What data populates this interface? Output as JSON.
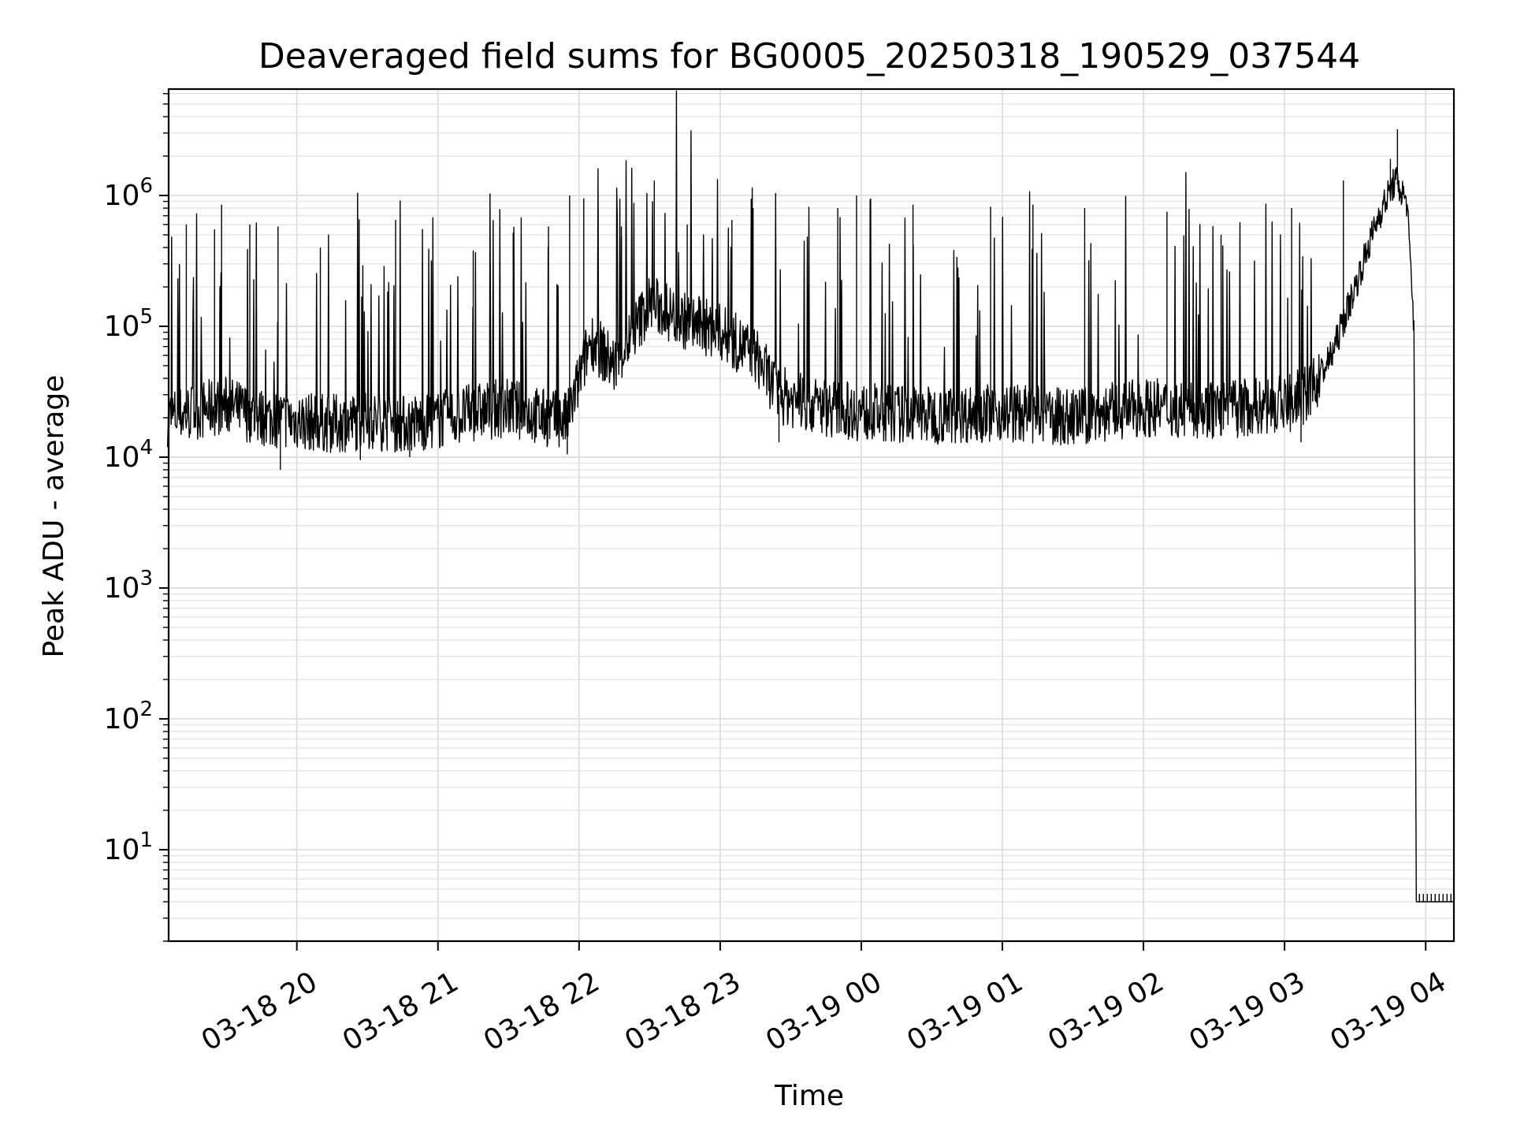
{
  "chart_data": {
    "type": "line",
    "title": "Deaveraged field sums for BG0005_20250318_190529_037544",
    "xlabel": "Time",
    "ylabel": "Peak ADU - average",
    "y_scale": "log",
    "ylim": [
      2,
      6500000
    ],
    "xlim": [
      "2025-03-18 19:05:29",
      "2025-03-19 04:12:00"
    ],
    "grid": true,
    "legend": "none",
    "line_color": "#000000",
    "x_ticks": [
      {
        "value": "2025-03-18 20:00",
        "label": "03-18 20"
      },
      {
        "value": "2025-03-18 21:00",
        "label": "03-18 21"
      },
      {
        "value": "2025-03-18 22:00",
        "label": "03-18 22"
      },
      {
        "value": "2025-03-18 23:00",
        "label": "03-18 23"
      },
      {
        "value": "2025-03-19 00:00",
        "label": "03-19 00"
      },
      {
        "value": "2025-03-19 01:00",
        "label": "03-19 01"
      },
      {
        "value": "2025-03-19 02:00",
        "label": "03-19 02"
      },
      {
        "value": "2025-03-19 03:00",
        "label": "03-19 03"
      },
      {
        "value": "2025-03-19 04:00",
        "label": "03-19 04"
      }
    ],
    "y_ticks": [
      {
        "value": 10,
        "base": "10",
        "exp": "1"
      },
      {
        "value": 100,
        "base": "10",
        "exp": "2"
      },
      {
        "value": 1000,
        "base": "10",
        "exp": "3"
      },
      {
        "value": 10000,
        "base": "10",
        "exp": "4"
      },
      {
        "value": 100000,
        "base": "10",
        "exp": "5"
      },
      {
        "value": 1000000,
        "base": "10",
        "exp": "6"
      }
    ],
    "series": [
      {
        "points": [
          [
            "2025-03-18 19:05",
            20000
          ],
          [
            "2025-03-18 19:15",
            22000
          ],
          [
            "2025-03-18 19:30",
            25000
          ],
          [
            "2025-03-18 19:45",
            20000
          ],
          [
            "2025-03-18 20:00",
            19000
          ],
          [
            "2025-03-18 20:15",
            18000
          ],
          [
            "2025-03-18 20:30",
            19000
          ],
          [
            "2025-03-18 20:45",
            18000
          ],
          [
            "2025-03-18 21:00",
            19000
          ],
          [
            "2025-03-18 21:15",
            22000
          ],
          [
            "2025-03-18 21:30",
            24000
          ],
          [
            "2025-03-18 21:45",
            20000
          ],
          [
            "2025-03-18 21:55",
            19000
          ],
          [
            "2025-03-18 22:05",
            80000
          ],
          [
            "2025-03-18 22:15",
            50000
          ],
          [
            "2025-03-18 22:30",
            150000
          ],
          [
            "2025-03-18 22:45",
            110000
          ],
          [
            "2025-03-18 23:00",
            90000
          ],
          [
            "2025-03-18 23:15",
            60000
          ],
          [
            "2025-03-18 23:25",
            30000
          ],
          [
            "2025-03-18 23:40",
            25000
          ],
          [
            "2025-03-19 00:00",
            22000
          ],
          [
            "2025-03-19 00:30",
            21000
          ],
          [
            "2025-03-19 01:00",
            22000
          ],
          [
            "2025-03-19 01:30",
            20000
          ],
          [
            "2025-03-19 02:00",
            24000
          ],
          [
            "2025-03-19 02:30",
            23000
          ],
          [
            "2025-03-19 03:00",
            25000
          ],
          [
            "2025-03-19 03:10",
            30000
          ],
          [
            "2025-03-19 03:20",
            60000
          ],
          [
            "2025-03-19 03:30",
            200000
          ],
          [
            "2025-03-19 03:40",
            700000
          ],
          [
            "2025-03-19 03:47",
            1300000
          ],
          [
            "2025-03-19 03:52",
            900000
          ],
          [
            "2025-03-19 03:55",
            100000
          ],
          [
            "2025-03-19 03:56",
            4
          ],
          [
            "2025-03-19 04:12",
            4
          ]
        ],
        "spikes": [
          [
            "2025-03-18 19:13",
            600000
          ],
          [
            "2025-03-18 19:25",
            550000
          ],
          [
            "2025-03-18 19:28",
            850000
          ],
          [
            "2025-03-18 19:40",
            600000
          ],
          [
            "2025-03-18 19:52",
            580000
          ],
          [
            "2025-03-18 20:10",
            400000
          ],
          [
            "2025-03-18 20:42",
            650000
          ],
          [
            "2025-03-18 21:15",
            380000
          ],
          [
            "2025-03-18 21:32",
            520000
          ],
          [
            "2025-03-18 21:47",
            580000
          ],
          [
            "2025-03-18 21:56",
            1000000
          ],
          [
            "2025-03-18 22:02",
            950000
          ],
          [
            "2025-03-18 22:18",
            580000
          ],
          [
            "2025-03-18 22:32",
            1300000
          ],
          [
            "2025-03-18 22:46",
            600000
          ],
          [
            "2025-03-18 23:05",
            650000
          ],
          [
            "2025-03-18 23:14",
            800000
          ],
          [
            "2025-03-18 23:50",
            800000
          ],
          [
            "2025-03-18 23:58",
            1000000
          ],
          [
            "2025-03-19 00:22",
            850000
          ],
          [
            "2025-03-19 00:55",
            820000
          ],
          [
            "2025-03-19 01:13",
            850000
          ],
          [
            "2025-03-19 01:35",
            800000
          ],
          [
            "2025-03-19 02:10",
            750000
          ],
          [
            "2025-03-19 02:33",
            500000
          ],
          [
            "2025-03-19 03:03",
            800000
          ],
          [
            "2025-03-19 03:25",
            1300000
          ],
          [
            "2025-03-19 03:45",
            1900000
          ],
          [
            "2025-03-19 03:48",
            3200000
          ]
        ],
        "dips": [
          [
            "2025-03-18 19:53",
            8000
          ],
          [
            "2025-03-18 20:27",
            9500
          ],
          [
            "2025-03-18 20:48",
            10000
          ],
          [
            "2025-03-18 21:55",
            10500
          ],
          [
            "2025-03-18 23:25",
            13000
          ],
          [
            "2025-03-19 00:22",
            14000
          ],
          [
            "2025-03-19 02:40",
            14000
          ],
          [
            "2025-03-19 03:07",
            13000
          ]
        ]
      }
    ]
  }
}
